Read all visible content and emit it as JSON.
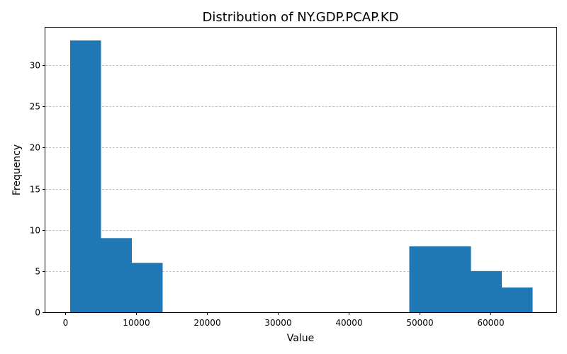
{
  "chart_data": {
    "type": "bar",
    "title": "Distribution of NY.GDP.PCAP.KD",
    "xlabel": "Value",
    "ylabel": "Frequency",
    "xlim": [
      -2800,
      69300
    ],
    "ylim": [
      0,
      34.65
    ],
    "xticks": [
      0,
      10000,
      20000,
      30000,
      40000,
      50000,
      60000
    ],
    "yticks": [
      0,
      5,
      10,
      15,
      20,
      25,
      30
    ],
    "grid": "y-dashed",
    "bar_color": "#1f77b4",
    "bins": [
      {
        "start": 700,
        "end": 5050,
        "count": 33
      },
      {
        "start": 5050,
        "end": 9400,
        "count": 9
      },
      {
        "start": 9400,
        "end": 13750,
        "count": 6
      },
      {
        "start": 13750,
        "end": 18100,
        "count": 0
      },
      {
        "start": 18100,
        "end": 22450,
        "count": 0
      },
      {
        "start": 22450,
        "end": 26800,
        "count": 0
      },
      {
        "start": 26800,
        "end": 31150,
        "count": 0
      },
      {
        "start": 31150,
        "end": 35500,
        "count": 0
      },
      {
        "start": 35500,
        "end": 39850,
        "count": 0
      },
      {
        "start": 39850,
        "end": 44200,
        "count": 0
      },
      {
        "start": 44200,
        "end": 48550,
        "count": 0
      },
      {
        "start": 48550,
        "end": 52900,
        "count": 8
      },
      {
        "start": 52900,
        "end": 57250,
        "count": 8
      },
      {
        "start": 57250,
        "end": 61600,
        "count": 5
      },
      {
        "start": 61600,
        "end": 65950,
        "count": 3
      }
    ]
  }
}
